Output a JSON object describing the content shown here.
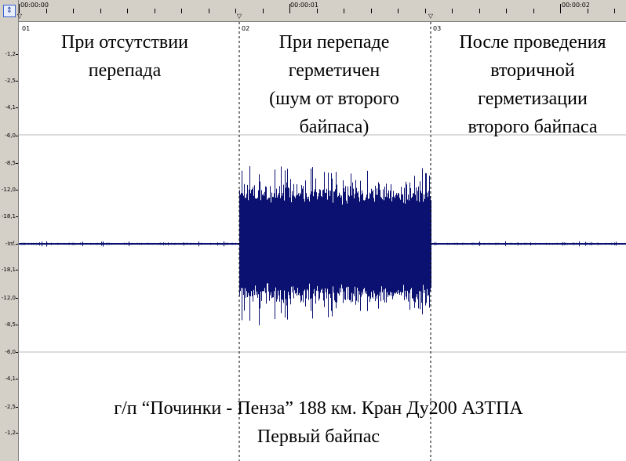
{
  "timeline": {
    "labels": [
      "00:00:00",
      "00:00:01",
      "00:00:02"
    ],
    "markers": [
      "01",
      "02",
      "03"
    ]
  },
  "y_axis": {
    "labels": [
      "-1,2",
      "-2,5",
      "-4,1",
      "-6,0",
      "-8,5",
      "-12,0",
      "-18,1",
      "-Inf.",
      "-18,1",
      "-12,0",
      "-8,5",
      "-6,0",
      "-4,1",
      "-2,5",
      "-1,2"
    ]
  },
  "regions": [
    {
      "label": "При отсутствии\nперепада"
    },
    {
      "label": "При перепаде\nгерметичен\n(шум от второго\nбайпаса)"
    },
    {
      "label": "После проведения\nвторичной\nгерметизации\nвторого байпаса"
    }
  ],
  "caption": {
    "line1": "г/п “Починки - Пенза” 188 км. Кран Ду200 АЗТПА",
    "line2": "Первый байпас"
  },
  "colors": {
    "waveform": "#0b1170",
    "grid": "#b8b8b8",
    "panel": "#d4d0c8"
  },
  "icons": {
    "corner": "zoom-icon"
  }
}
